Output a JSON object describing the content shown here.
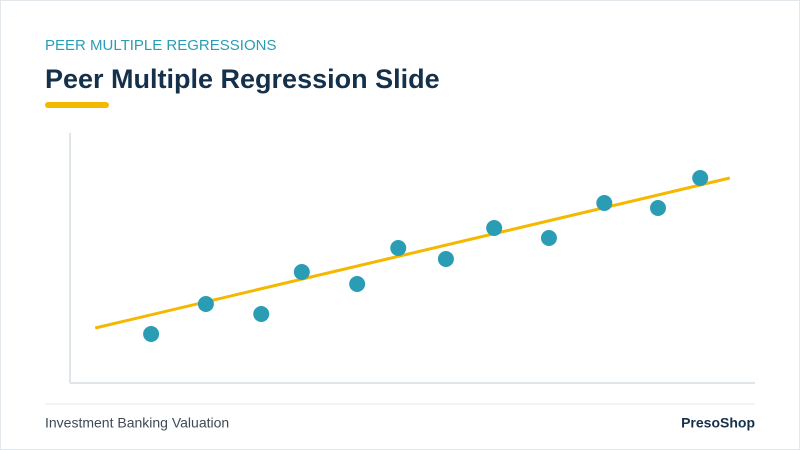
{
  "chart_data": {
    "type": "scatter",
    "subtitle": "PEER MULTIPLE REGRESSIONS",
    "title": "Peer Multiple Regression Slide",
    "x": [
      1.48,
      2.48,
      3.49,
      4.23,
      5.24,
      5.99,
      6.86,
      7.74,
      8.74,
      9.75,
      10.73,
      11.5
    ],
    "values": [
      1.96,
      3.16,
      2.76,
      4.44,
      3.96,
      5.4,
      4.96,
      6.2,
      5.8,
      7.2,
      7.0,
      8.2
    ],
    "color": "#2a9db5",
    "trendline": {
      "x": [
        0.46,
        12.04
      ],
      "values": [
        2.2,
        8.2
      ],
      "color": "#f5b800"
    },
    "xlim": [
      0,
      12.5
    ],
    "ylim": [
      0,
      10
    ]
  },
  "footer": {
    "left": "Investment Banking Valuation",
    "right": "PresoShop"
  }
}
